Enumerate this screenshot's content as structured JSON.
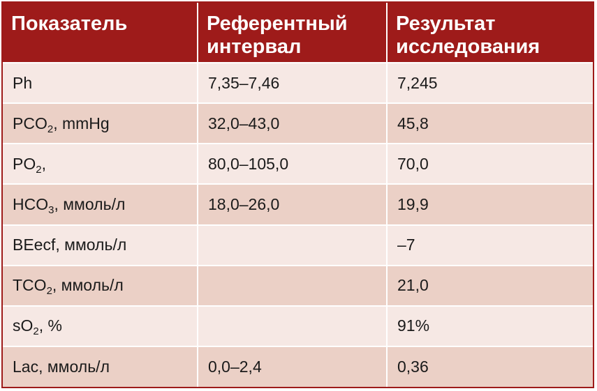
{
  "header": {
    "col1": "Показатель",
    "col2": "Референтный интервал",
    "col3": "Результат исследования"
  },
  "rows": [
    {
      "name": "Ph",
      "sub": "",
      "suffix": "",
      "ref": "7,35–7,46",
      "result": "7,245"
    },
    {
      "name": "PCO",
      "sub": "2",
      "suffix": ", mmHg",
      "ref": "32,0–43,0",
      "result": "45,8"
    },
    {
      "name": "PO",
      "sub": "2",
      "suffix": ",",
      "ref": "80,0–105,0",
      "result": "70,0"
    },
    {
      "name": "HCO",
      "sub": "3",
      "suffix": ", ммоль/л",
      "ref": "18,0–26,0",
      "result": "19,9"
    },
    {
      "name": "BEecf, ммоль/л",
      "sub": "",
      "suffix": "",
      "ref": "",
      "result": "–7"
    },
    {
      "name": "TCO",
      "sub": "2",
      "suffix": ", ммоль/л",
      "ref": "",
      "result": "21,0"
    },
    {
      "name": "sO",
      "sub": "2",
      "suffix": ", %",
      "ref": "",
      "result": "91%"
    },
    {
      "name": "Lac, ммоль/л",
      "sub": "",
      "suffix": "",
      "ref": "0,0–2,4",
      "result": "0,36"
    }
  ],
  "colors": {
    "header_bg": "#9e1b1a",
    "row_light": "#f6e8e4",
    "row_dark": "#ebd0c6"
  }
}
